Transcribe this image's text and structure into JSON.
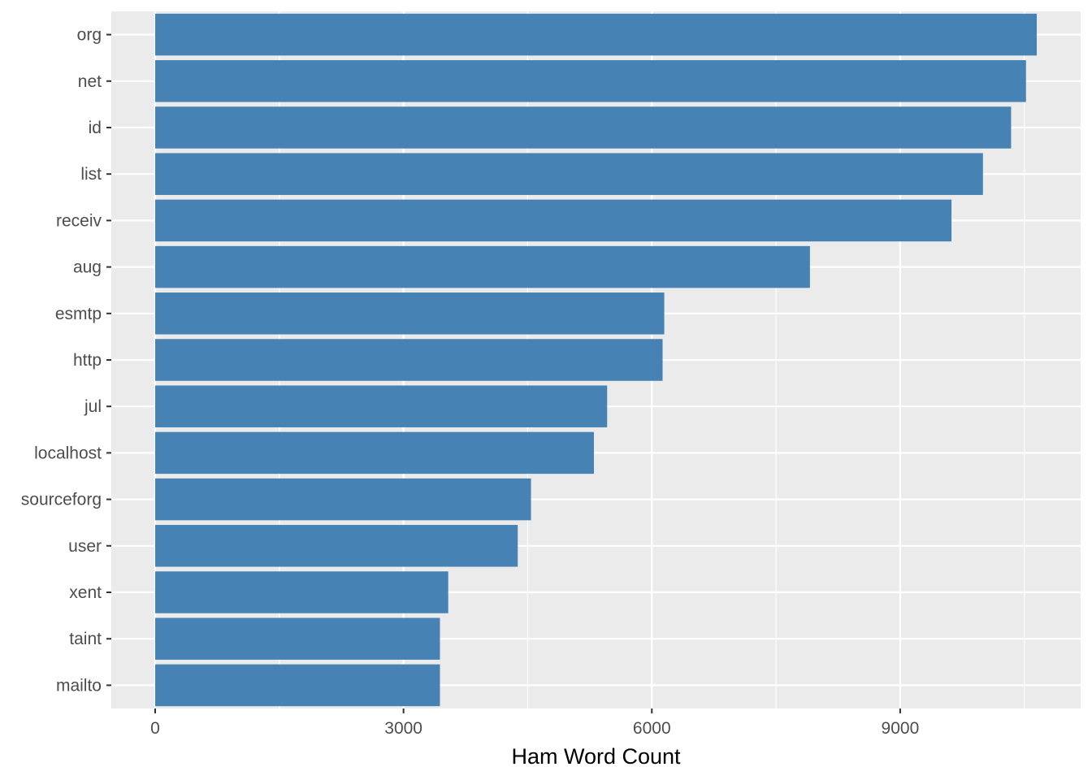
{
  "chart_data": {
    "type": "bar",
    "orientation": "horizontal",
    "categories": [
      "org",
      "net",
      "id",
      "list",
      "receiv",
      "aug",
      "esmtp",
      "http",
      "jul",
      "localhost",
      "sourceforg",
      "user",
      "xent",
      "taint",
      "mailto"
    ],
    "values": [
      10650,
      10520,
      10340,
      10000,
      9620,
      7910,
      6150,
      6130,
      5460,
      5300,
      4540,
      4380,
      3540,
      3440,
      3440
    ],
    "xlabel": "Ham Word Count",
    "ylabel": "",
    "title": "",
    "xlim": [
      -530,
      11180
    ],
    "x_ticks": [
      0,
      3000,
      6000,
      9000
    ],
    "x_tick_labels": [
      "0",
      "3000",
      "6000",
      "9000"
    ],
    "grid": true,
    "legend": "none"
  },
  "colors": {
    "bar": "#4682b4",
    "panel": "#ebebeb",
    "grid": "#ffffff",
    "tick_text": "#4d4d4d",
    "axis_title": "#000000"
  }
}
